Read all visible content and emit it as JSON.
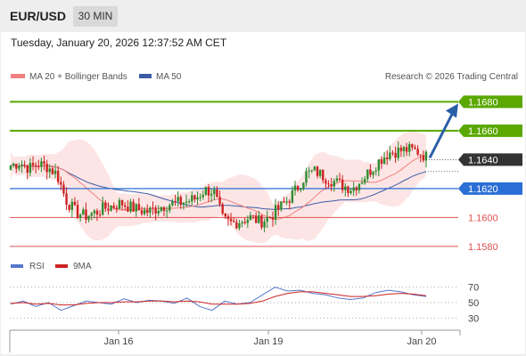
{
  "header": {
    "symbol": "EUR/USD",
    "timeframe": "30 MIN"
  },
  "timestamp": "Tuesday, January 20, 2026 12:37:52 AM CET",
  "legend": {
    "ma20": "MA 20 + Bollinger Bands",
    "ma50": "MA 50",
    "copyright": "Research © 2026 Trading Central"
  },
  "rsi_legend": {
    "rsi": "RSI",
    "ma": "9MA"
  },
  "colors": {
    "ma20": "#f08080",
    "ma50": "#3b5ba5",
    "band": "#fde2e2",
    "bull": "#2e8b2e",
    "bear": "#cc2222",
    "green_line": "#5aa800",
    "blue_line": "#2a6fd6",
    "red_line": "#e05050",
    "arrow": "#2a5fa8",
    "current": "#333333"
  },
  "chart_data": [
    {
      "type": "candlestick",
      "ylim": [
        1.1575,
        1.1695
      ],
      "x_ticks": [
        "Jan 16",
        "Jan 19",
        "Jan 20"
      ],
      "levels": [
        {
          "price": 1.168,
          "label": "1.1680",
          "kind": "resistance"
        },
        {
          "price": 1.166,
          "label": "1.1660",
          "kind": "resistance"
        },
        {
          "price": 1.164,
          "label": "1.1640",
          "kind": "current"
        },
        {
          "price": 1.162,
          "label": "1.1620",
          "kind": "pivot"
        },
        {
          "price": 1.16,
          "label": "1.1600",
          "kind": "support"
        },
        {
          "price": 1.158,
          "label": "1.1580",
          "kind": "support"
        }
      ],
      "close_path": [
        1.1636,
        1.1638,
        1.1634,
        1.1637,
        1.1635,
        1.163,
        1.1612,
        1.1604,
        1.1601,
        1.1603,
        1.1606,
        1.1608,
        1.161,
        1.1607,
        1.1605,
        1.1604,
        1.1607,
        1.1609,
        1.161,
        1.1611,
        1.1613,
        1.1619,
        1.1618,
        1.1598,
        1.1596,
        1.1598,
        1.16,
        1.1597,
        1.16,
        1.1606,
        1.1612,
        1.162,
        1.163,
        1.1632,
        1.1628,
        1.1625,
        1.1622,
        1.162,
        1.1626,
        1.1633,
        1.164,
        1.1645,
        1.1646,
        1.1647,
        1.1646,
        1.1642
      ],
      "projection": {
        "from": 1.164,
        "to": 1.168
      }
    },
    {
      "type": "line",
      "name": "RSI",
      "ylim": [
        20,
        80
      ],
      "ticks": [
        30,
        50,
        70
      ],
      "series": [
        {
          "name": "RSI",
          "values": [
            48,
            52,
            45,
            50,
            40,
            46,
            52,
            50,
            48,
            55,
            50,
            53,
            52,
            49,
            56,
            45,
            40,
            52,
            48,
            50,
            60,
            70,
            65,
            66,
            62,
            60,
            56,
            54,
            56,
            63,
            66,
            64,
            60,
            58
          ]
        },
        {
          "name": "9MA",
          "values": [
            49,
            50,
            48,
            49,
            47,
            47,
            49,
            50,
            50,
            51,
            51,
            52,
            52,
            51,
            52,
            51,
            48,
            48,
            48,
            49,
            52,
            58,
            62,
            64,
            64,
            62,
            60,
            58,
            58,
            59,
            61,
            62,
            61,
            59
          ]
        }
      ]
    }
  ]
}
